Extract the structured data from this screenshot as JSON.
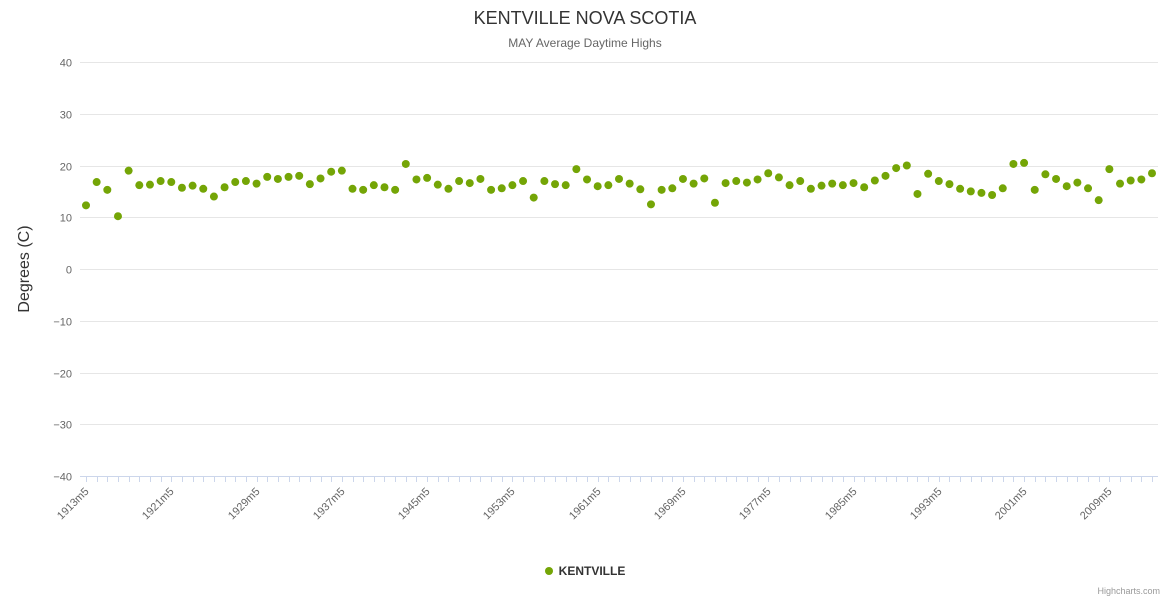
{
  "credits": "Highcharts.com",
  "chart_data": {
    "type": "scatter",
    "title": "KENTVILLE NOVA SCOTIA",
    "subtitle": "MAY Average Daytime Highs",
    "xlabel": "",
    "ylabel": "Degrees (C)",
    "ylim": [
      -40,
      40
    ],
    "y_tick_interval": 10,
    "y_tick_labels": [
      "40",
      "30",
      "20",
      "10",
      "0",
      "−10",
      "−20",
      "−30",
      "−40"
    ],
    "grid": true,
    "legend_position": "bottom-center",
    "x_start_year": 1913,
    "x_end_year": 2013,
    "x_label_suffix": "m5",
    "x_label_every": 8,
    "x_tick_labels": [
      "1913m5",
      "1921m5",
      "1929m5",
      "1937m5",
      "1945m5",
      "1953m5",
      "1961m5",
      "1969m5",
      "1977m5",
      "1985m5",
      "1993m5",
      "2001m5",
      "2009m5"
    ],
    "marker_color": "#74a506",
    "series": [
      {
        "name": "KENTVILLE",
        "color": "#74a506",
        "first_year": 1913,
        "values": [
          12.3,
          16.8,
          15.3,
          10.2,
          19.0,
          16.2,
          16.3,
          17.0,
          16.8,
          15.7,
          16.1,
          15.5,
          14.0,
          15.8,
          16.8,
          17.0,
          16.5,
          17.8,
          17.4,
          17.8,
          18.0,
          16.4,
          17.5,
          18.8,
          19.0,
          15.5,
          15.3,
          16.2,
          15.8,
          15.3,
          20.3,
          17.3,
          17.6,
          16.3,
          15.5,
          17.0,
          16.6,
          17.4,
          15.3,
          15.6,
          16.2,
          17.0,
          13.8,
          17.0,
          16.4,
          16.2,
          19.3,
          17.3,
          16.0,
          16.2,
          17.4,
          16.5,
          15.4,
          12.5,
          15.3,
          15.6,
          17.4,
          16.5,
          17.5,
          12.8,
          16.6,
          17.0,
          16.7,
          17.3,
          18.5,
          17.7,
          16.2,
          17.0,
          15.5,
          16.1,
          16.5,
          16.2,
          16.6,
          15.8,
          17.1,
          18.0,
          19.5,
          20.0,
          14.5,
          18.4,
          17.0,
          16.4,
          15.5,
          15.0,
          14.7,
          14.3,
          15.6,
          20.3,
          20.5,
          15.3,
          18.3,
          17.4,
          16.0,
          16.7,
          15.6,
          13.3,
          19.3,
          16.5,
          17.1,
          17.3,
          18.5
        ]
      }
    ]
  }
}
